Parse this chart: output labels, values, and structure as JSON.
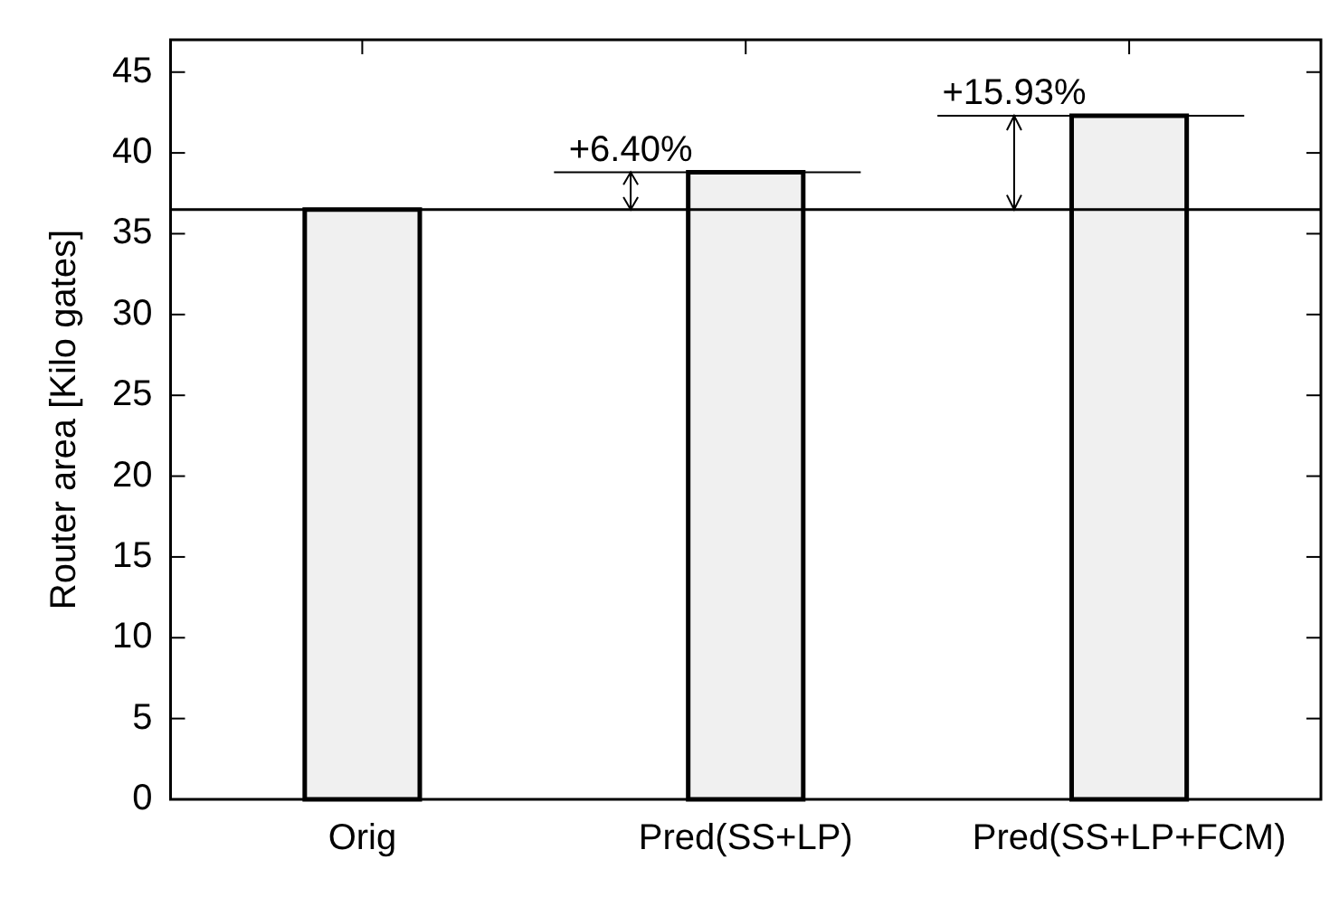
{
  "chart_data": {
    "type": "bar",
    "ylabel": "Router area [Kilo gates]",
    "categories": [
      "Orig",
      "Pred(SS+LP)",
      "Pred(SS+LP+FCM)"
    ],
    "values": [
      36.5,
      38.8,
      42.3
    ],
    "color": "#f0f0f0",
    "ylim": [
      0,
      47
    ],
    "yticks": [
      0,
      5,
      10,
      15,
      20,
      25,
      30,
      35,
      40,
      45
    ],
    "grid": false,
    "legend": false,
    "ref_lines": [
      {
        "axis": "y",
        "value": 36.5,
        "color": "#000000"
      }
    ],
    "annotations": [
      {
        "text": "+6.40%",
        "x": "Pred(SS+LP)",
        "y": 38.8
      },
      {
        "text": "+15.93%",
        "x": "Pred(SS+LP+FCM)",
        "y": 42.3
      }
    ]
  }
}
